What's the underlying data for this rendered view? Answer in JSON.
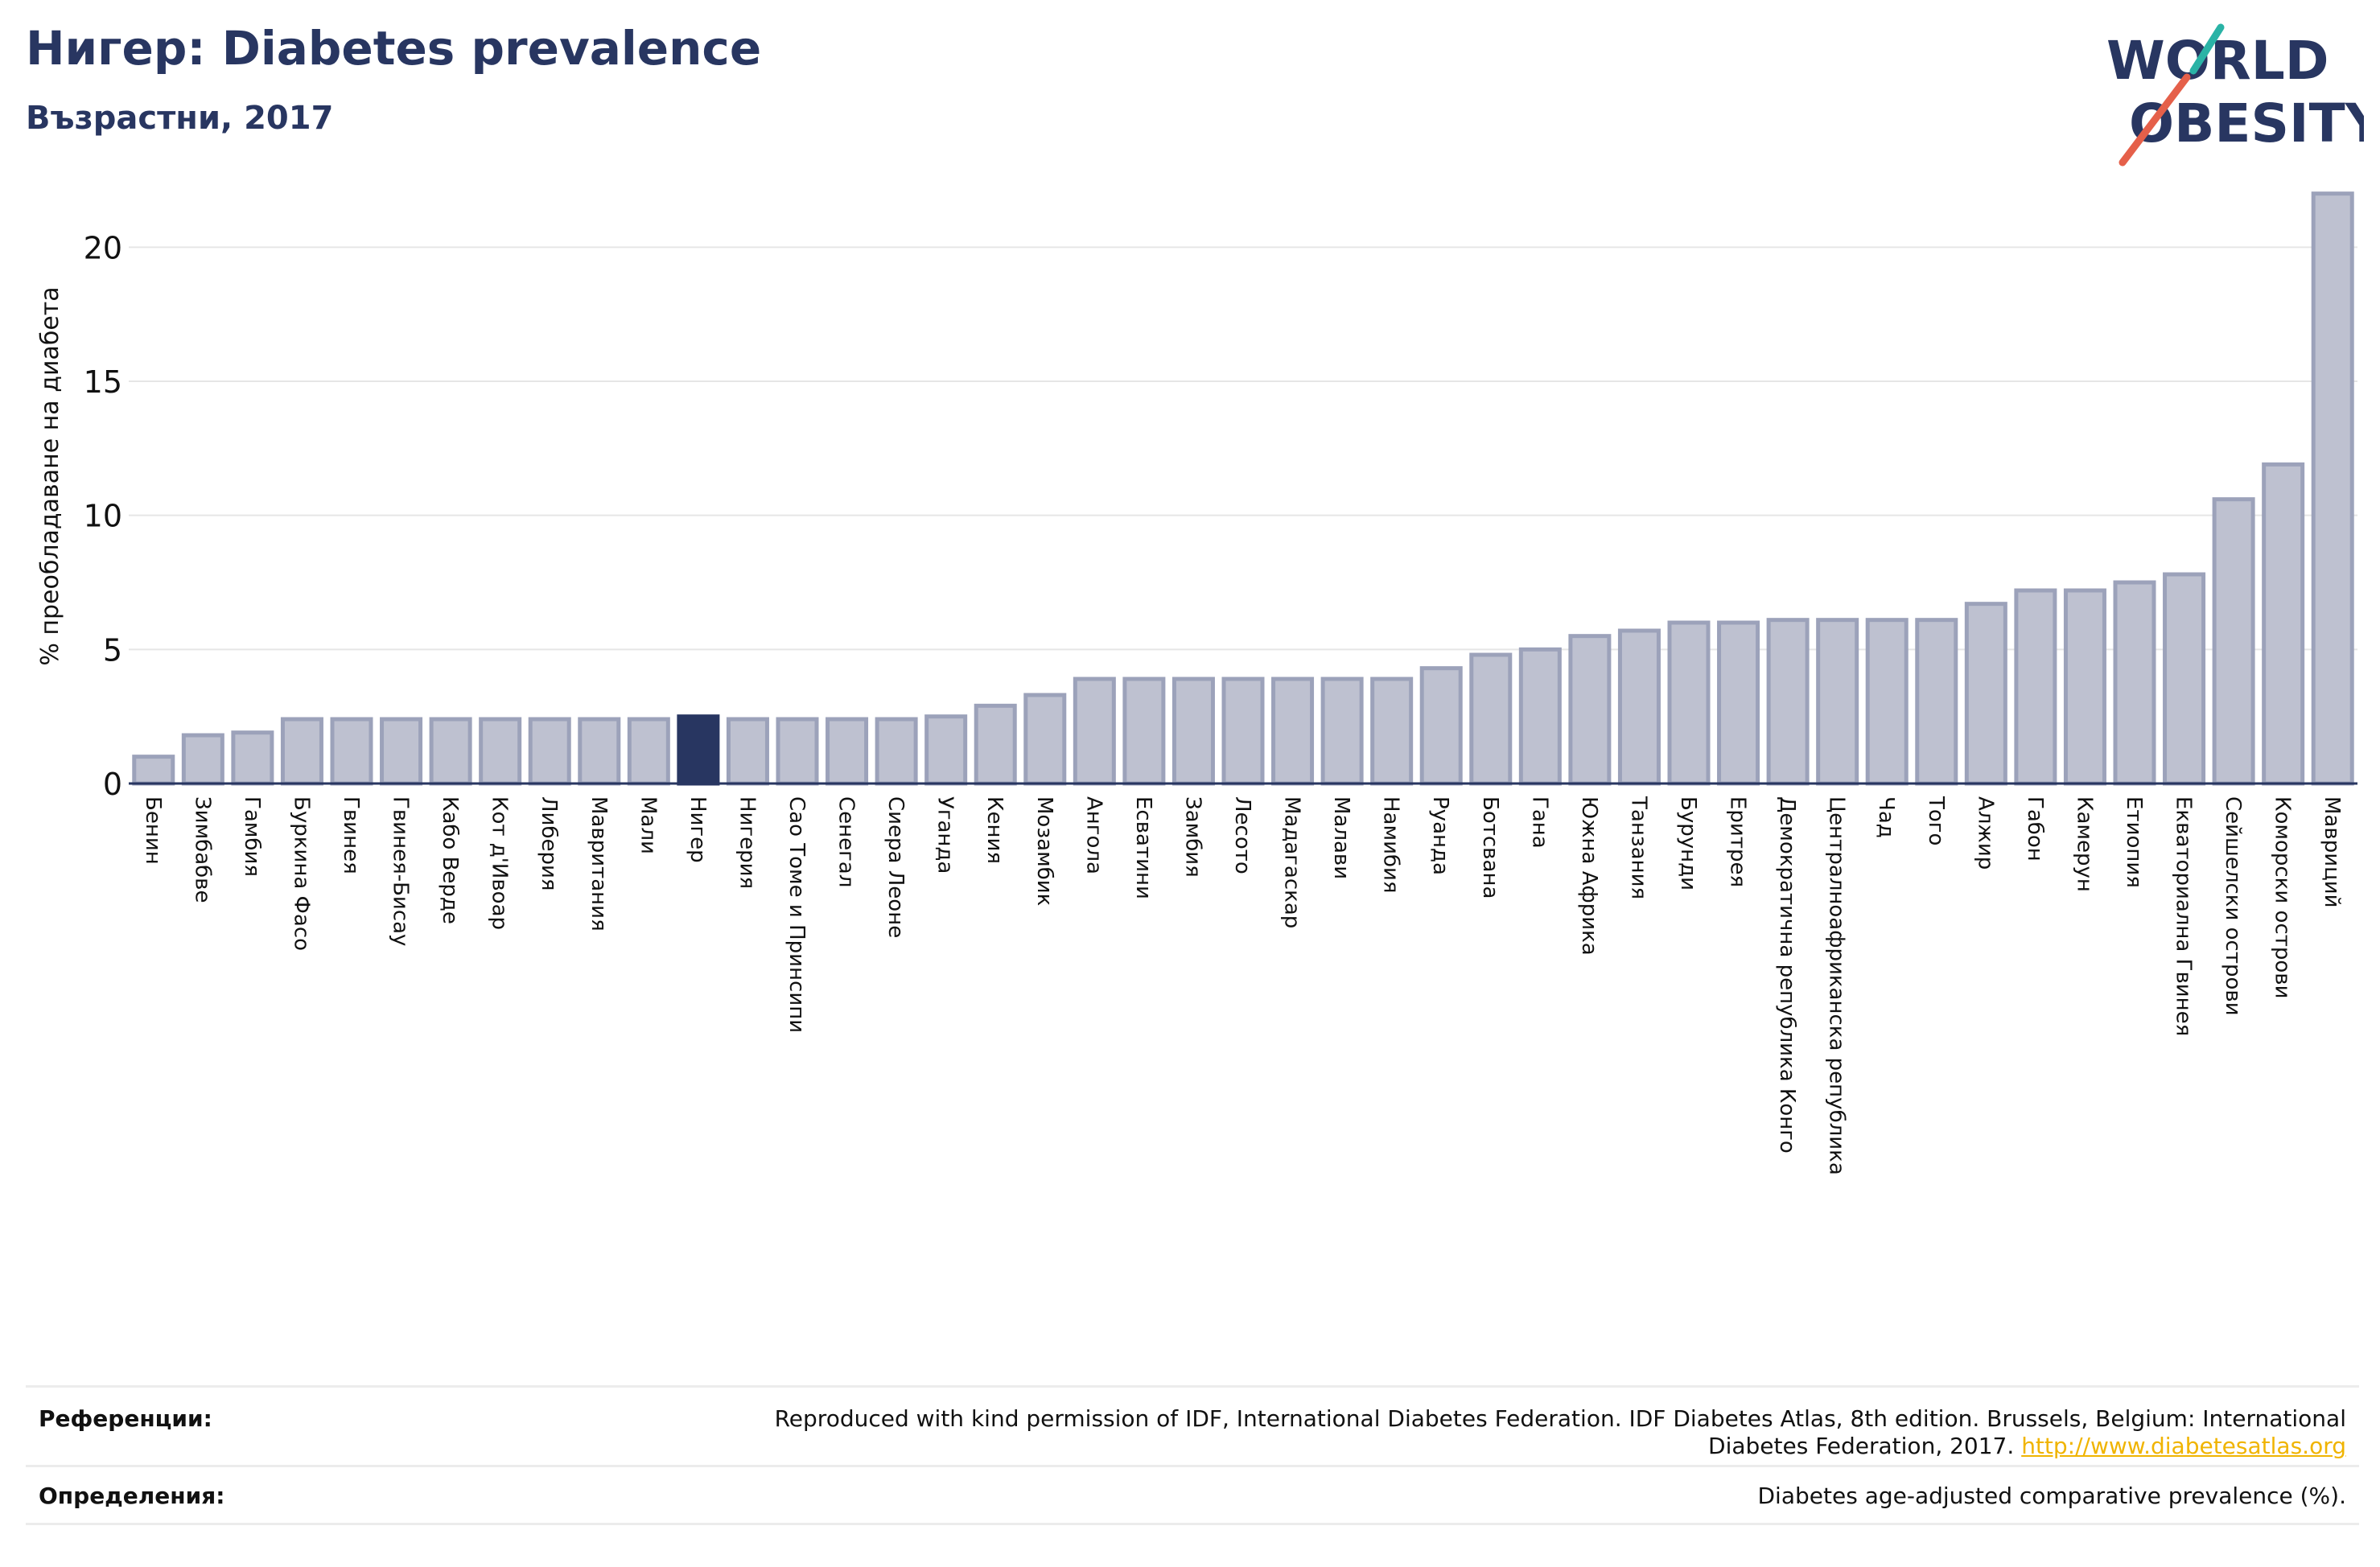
{
  "header": {
    "title": "Нигер: Diabetes prevalence",
    "subtitle": "Възрастни, 2017"
  },
  "logo": {
    "line1": "WORLD",
    "line2": "OBESITY",
    "colors": {
      "text": "#283661",
      "slash_teal": "#2ab3a6",
      "slash_coral": "#e5604a"
    }
  },
  "chart_data": {
    "type": "bar",
    "ylabel": "% преобладаване на диабета",
    "xlabel": "",
    "ylim": [
      0,
      22.5
    ],
    "yticks": [
      0,
      5,
      10,
      15,
      20
    ],
    "grid": true,
    "highlight": "Нигер",
    "colors": {
      "bar": "#bec1d0",
      "bar_edge": "#9ca2ba",
      "highlight": "#283661",
      "axis": "#283661",
      "grid": "#e6e6e6"
    },
    "categories": [
      "Бенин",
      "Зимбабве",
      "Гамбия",
      "Буркина Фасо",
      "Гвинея",
      "Гвинея-Бисау",
      "Кабо Верде",
      "Кот д'Ивоар",
      "Либерия",
      "Мавритания",
      "Мали",
      "Нигер",
      "Нигерия",
      "Сао Томе и Принсипи",
      "Сенегал",
      "Сиера Леоне",
      "Уганда",
      "Кения",
      "Мозамбик",
      "Ангола",
      "Есватини",
      "Замбия",
      "Лесото",
      "Мадагаскар",
      "Малави",
      "Намибия",
      "Руанда",
      "Ботсвана",
      "Гана",
      "Южна Африка",
      "Танзания",
      "Бурунди",
      "Еритрея",
      "Демократична република Конго",
      "Централноафриканска република",
      "Чад",
      "Того",
      "Алжир",
      "Габон",
      "Камерун",
      "Етиопия",
      "Екваториална Гвинея",
      "Сейшелски острови",
      "Коморски острови",
      "Мавриций"
    ],
    "values": [
      1.0,
      1.8,
      1.9,
      2.4,
      2.4,
      2.4,
      2.4,
      2.4,
      2.4,
      2.4,
      2.4,
      2.5,
      2.4,
      2.4,
      2.4,
      2.4,
      2.5,
      2.9,
      3.3,
      3.9,
      3.9,
      3.9,
      3.9,
      3.9,
      3.9,
      3.9,
      4.3,
      4.8,
      5.0,
      5.5,
      5.7,
      6.0,
      6.0,
      6.1,
      6.1,
      6.1,
      6.1,
      6.7,
      7.2,
      7.2,
      7.5,
      7.8,
      10.6,
      11.9,
      22.0
    ]
  },
  "references": {
    "refs_label": "Референции:",
    "refs_text_1": "Reproduced with kind permission of IDF, International Diabetes Federation. IDF Diabetes Atlas, 8th edition. Brussels, Belgium: International",
    "refs_text_2": "Diabetes Federation, 2017.",
    "refs_link": "http://www.diabetesatlas.org",
    "defs_label": "Определения:",
    "defs_text": "Diabetes age-adjusted comparative prevalence (%)."
  }
}
